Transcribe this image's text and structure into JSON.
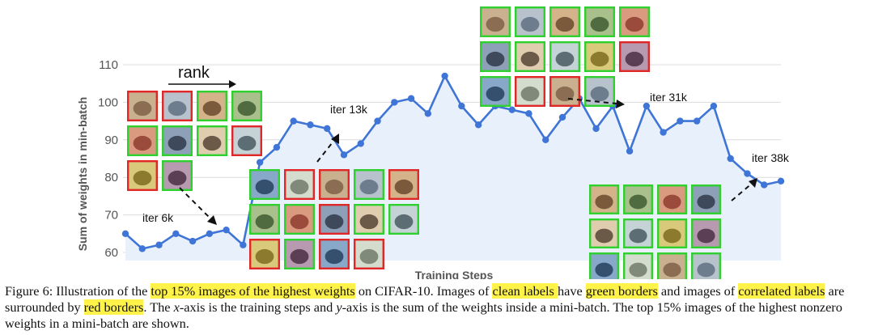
{
  "figure": {
    "rank_label": "rank",
    "iteration_labels": [
      "iter 6k",
      "iter 13k",
      "iter 31k",
      "iter 38k"
    ]
  },
  "chart_data": {
    "type": "area",
    "title": "",
    "xlabel": "Training Steps",
    "ylabel": "Sum of weights in min-batch",
    "ylim": [
      58,
      112
    ],
    "yticks": [
      60,
      70,
      80,
      90,
      100,
      110
    ],
    "grid": true,
    "x": [
      1,
      2,
      3,
      4,
      5,
      6,
      7,
      8,
      9,
      10,
      11,
      12,
      13,
      14,
      15,
      16,
      17,
      18,
      19,
      20,
      21,
      22,
      23,
      24,
      25,
      26,
      27,
      28,
      29,
      30,
      31,
      32,
      33,
      34,
      35,
      36,
      37,
      38,
      39,
      40
    ],
    "series": [
      {
        "values": [
          65,
          61,
          62,
          65,
          63,
          65,
          66,
          62,
          84,
          88,
          95,
          94,
          93,
          86,
          89,
          95,
          100,
          101,
          97,
          107,
          99,
          94,
          99,
          98,
          97,
          90,
          96,
          101,
          93,
          99,
          87,
          99,
          92,
          95,
          95,
          99,
          85,
          81,
          78,
          79
        ]
      }
    ],
    "colors": {
      "line": "#3f75d6",
      "area": "#e8f0fb",
      "grid": "#dcdcdc"
    },
    "image_groups": [
      {
        "annotation": "iter 6k",
        "rows": [
          [
            "red",
            "red",
            "green",
            "green"
          ],
          [
            "green",
            "green",
            "green",
            "red"
          ],
          [
            "red",
            "green"
          ]
        ]
      },
      {
        "annotation": "iter 13k",
        "rows": [
          [
            "green",
            "red",
            "red",
            "green",
            "red"
          ],
          [
            "green",
            "green",
            "red",
            "green",
            "green"
          ],
          [
            "red",
            "green",
            "red",
            "red"
          ]
        ]
      },
      {
        "annotation": "iter 31k",
        "rows": [
          [
            "green",
            "green",
            "green",
            "green",
            "green"
          ],
          [
            "green",
            "green",
            "green",
            "green",
            "red"
          ],
          [
            "green",
            "red",
            "red",
            "green"
          ]
        ]
      },
      {
        "annotation": "iter 38k",
        "rows": [
          [
            "green",
            "green",
            "green",
            "green"
          ],
          [
            "green",
            "green",
            "green",
            "green"
          ],
          [
            "green",
            "green",
            "green",
            "green"
          ]
        ]
      }
    ],
    "border_colors": {
      "green": "#2fd12f",
      "red": "#e02828"
    }
  },
  "caption": {
    "p1": "Figure 6: Illustration of the ",
    "h1": "top 15% images of the highest weights",
    "p2": " on CIFAR-10. Images of ",
    "h2": "clean labels ",
    "p3": "have ",
    "h3": "green borders",
    "p4": " and images of ",
    "h4": "correlated labels",
    "p5": " are surrounded by ",
    "h5": "red borders",
    "p6": ". The ",
    "m1": "x",
    "p7": "-axis is the training steps and ",
    "m2": "y",
    "p8": "-axis is the sum of the weights inside a mini-batch. The top 15% images of the highest nonzero weights in a mini-batch are shown."
  }
}
